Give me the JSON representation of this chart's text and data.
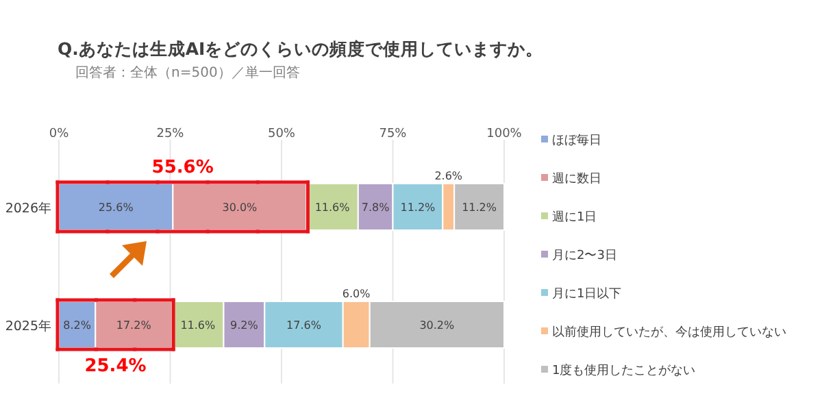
{
  "chart_data": {
    "type": "bar",
    "orientation": "horizontal",
    "stacked": true,
    "title": "Q.あなたは生成AIをどのくらいの頻度で使用していますか。",
    "subtitle": "回答者：全体（n=500）／単一回答",
    "categories": [
      "2026年",
      "2025年"
    ],
    "series": [
      {
        "name": "ほぼ毎日",
        "color": "#8faadc",
        "values": [
          25.6,
          8.2
        ],
        "value_labels": [
          "25.6%",
          "8.2%"
        ]
      },
      {
        "name": "週に数日",
        "color": "#e09a9c",
        "values": [
          30.0,
          17.2
        ],
        "value_labels": [
          "30.0%",
          "17.2%"
        ]
      },
      {
        "name": "週に1日",
        "color": "#c4d79b",
        "values": [
          11.6,
          11.6
        ],
        "value_labels": [
          "11.6%",
          "11.6%"
        ]
      },
      {
        "name": "月に2〜3日",
        "color": "#b3a2c7",
        "values": [
          7.8,
          9.2
        ],
        "value_labels": [
          "7.8%",
          "9.2%"
        ]
      },
      {
        "name": "月に1日以下",
        "color": "#93cddd",
        "values": [
          11.2,
          17.6
        ],
        "value_labels": [
          "11.2%",
          "17.6%"
        ]
      },
      {
        "name": "以前使用していたが、今は使用していない",
        "color": "#fac090",
        "values": [
          2.6,
          6.0
        ],
        "value_labels": [
          "2.6%",
          "6.0%"
        ]
      },
      {
        "name": "1度も使用したことがない",
        "color": "#bfbfbf",
        "values": [
          11.2,
          30.2
        ],
        "value_labels": [
          "11.2%",
          "30.2%"
        ]
      }
    ],
    "xlim": [
      0,
      100
    ],
    "xticks": [
      {
        "value": 0,
        "label": "0%"
      },
      {
        "value": 25,
        "label": "25%"
      },
      {
        "value": 50,
        "label": "50%"
      },
      {
        "value": 75,
        "label": "75%"
      },
      {
        "value": 100,
        "label": "100%"
      }
    ],
    "grid": "x",
    "legend": "right",
    "annotations": [
      "55.6%",
      "25.4%"
    ]
  }
}
